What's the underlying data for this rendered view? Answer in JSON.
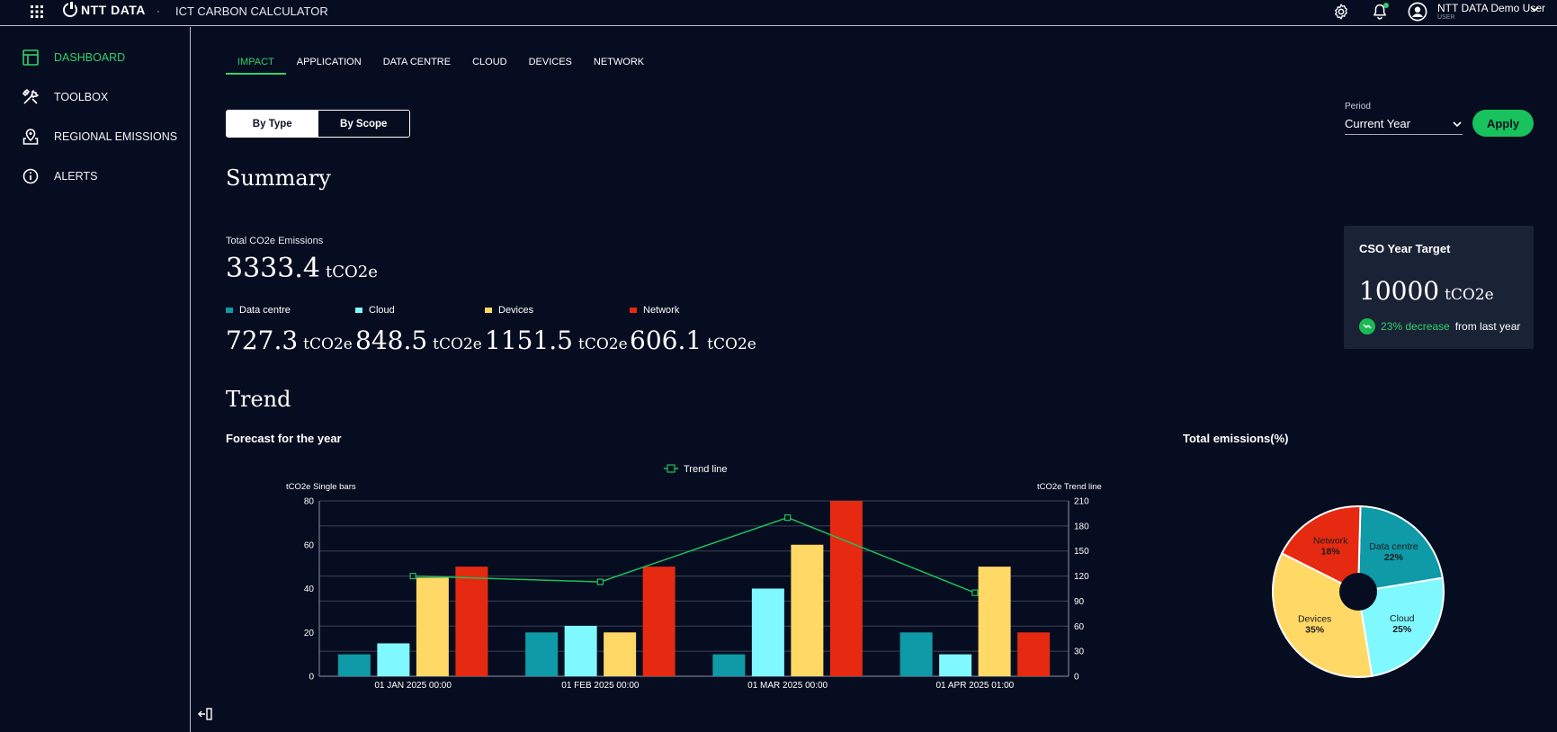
{
  "header": {
    "logo_text": "NTT DATA",
    "separator": "·",
    "app_title": "ICT CARBON CALCULATOR",
    "user_name": "NTT DATA Demo User",
    "user_role": "USER",
    "icons": [
      "apps-grid-icon",
      "settings-gear-icon",
      "notification-bell-icon",
      "user-avatar-icon",
      "chevron-down-icon"
    ]
  },
  "sidebar": {
    "items": [
      {
        "label": "DASHBOARD",
        "icon": "dashboard-icon",
        "active": true
      },
      {
        "label": "TOOLBOX",
        "icon": "tools-icon",
        "active": false
      },
      {
        "label": "REGIONAL EMISSIONS",
        "icon": "map-pin-icon",
        "active": false
      },
      {
        "label": "ALERTS",
        "icon": "info-icon",
        "active": false
      }
    ]
  },
  "tabs": [
    {
      "label": "IMPACT",
      "active": true
    },
    {
      "label": "APPLICATION",
      "active": false
    },
    {
      "label": "DATA CENTRE",
      "active": false
    },
    {
      "label": "CLOUD",
      "active": false
    },
    {
      "label": "DEVICES",
      "active": false
    },
    {
      "label": "NETWORK",
      "active": false
    }
  ],
  "view_toggle": {
    "by_type": "By Type",
    "by_scope": "By Scope",
    "selected": "By Type"
  },
  "period": {
    "label": "Period",
    "value": "Current Year",
    "apply_label": "Apply"
  },
  "summary": {
    "title": "Summary",
    "total_label": "Total CO2e Emissions",
    "total_value": "3333.4",
    "unit": "tCO2e",
    "categories": [
      {
        "name": "Data centre",
        "value": "727.3",
        "color": "#0e9aa7"
      },
      {
        "name": "Cloud",
        "value": "848.5",
        "color": "#7ff8ff"
      },
      {
        "name": "Devices",
        "value": "1151.5",
        "color": "#ffd865"
      },
      {
        "name": "Network",
        "value": "606.1",
        "color": "#e62a12"
      }
    ]
  },
  "cso": {
    "title": "CSO Year Target",
    "value": "10000",
    "unit": "tCO2e",
    "change_green": "23% decrease",
    "change_rest": "from last year"
  },
  "trend": {
    "title": "Trend",
    "forecast_title": "Forecast for the year",
    "pie_title": "Total emissions(%)"
  },
  "chart_data": [
    {
      "type": "bar",
      "title": "Forecast for the year",
      "categories": [
        "01 JAN 2025 00:00",
        "01 FEB 2025 00:00",
        "01 MAR 2025 00:00",
        "01 APR 2025 01:00"
      ],
      "series": [
        {
          "name": "Data centre",
          "values": [
            10,
            20,
            10,
            20
          ],
          "color": "#0e9aa7"
        },
        {
          "name": "Cloud",
          "values": [
            15,
            23,
            40,
            10
          ],
          "color": "#7ff8ff"
        },
        {
          "name": "Devices",
          "values": [
            45,
            20,
            60,
            50
          ],
          "color": "#ffd865"
        },
        {
          "name": "Network",
          "values": [
            50,
            50,
            80,
            20
          ],
          "color": "#e62a12"
        }
      ],
      "trend_line": {
        "name": "Trend line",
        "values": [
          120,
          113,
          190,
          100
        ],
        "color": "#1fbf5a"
      },
      "ylabel": "tCO2e Single bars",
      "ylabel_right": "tCO2e Trend line",
      "ylim": [
        0,
        80
      ],
      "yticks": [
        0,
        20,
        40,
        60,
        80
      ],
      "ylim_right": [
        0,
        210
      ],
      "yticks_right": [
        0,
        30,
        60,
        90,
        120,
        150,
        180,
        210
      ],
      "legend": "top-center",
      "grid": true
    },
    {
      "type": "pie",
      "title": "Total emissions(%)",
      "donut": true,
      "slices": [
        {
          "label": "Data centre",
          "value": 22,
          "color": "#0e9aa7"
        },
        {
          "label": "Cloud",
          "value": 25,
          "color": "#7ff8ff"
        },
        {
          "label": "Devices",
          "value": 35,
          "color": "#ffd865"
        },
        {
          "label": "Network",
          "value": 18,
          "color": "#e62a12"
        }
      ]
    }
  ]
}
